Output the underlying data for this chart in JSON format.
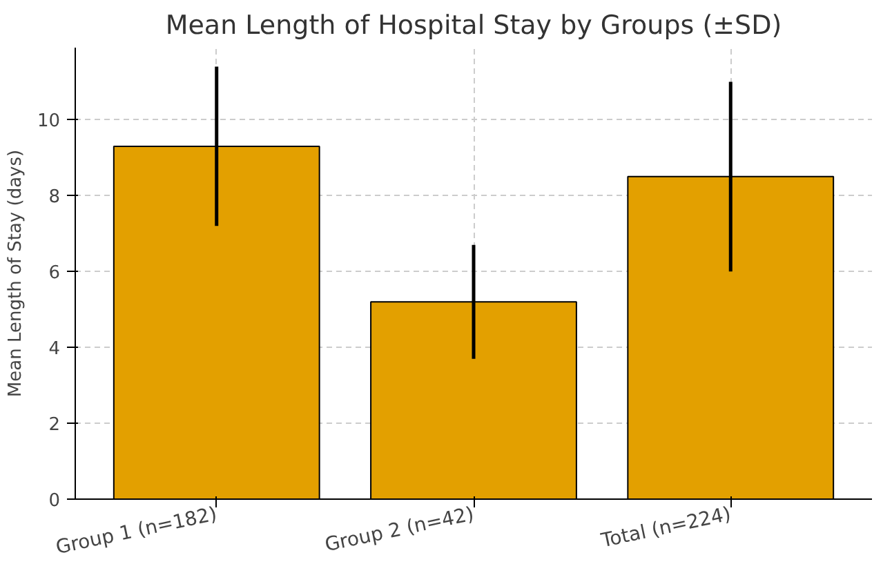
{
  "chart_data": {
    "type": "bar",
    "title": "Mean Length of Hospital Stay by Groups (±SD)",
    "ylabel": "Mean Length of Stay (days)",
    "categories": [
      "Group 1 (n=182)",
      "Group 2 (n=42)",
      "Total (n=224)"
    ],
    "values": [
      9.3,
      5.2,
      8.5
    ],
    "errors": [
      2.1,
      1.5,
      2.5
    ],
    "color": "#e3a000",
    "ylim": [
      0,
      11.9
    ],
    "yticks": [
      0,
      2,
      4,
      6,
      8,
      10
    ],
    "grid": true
  }
}
